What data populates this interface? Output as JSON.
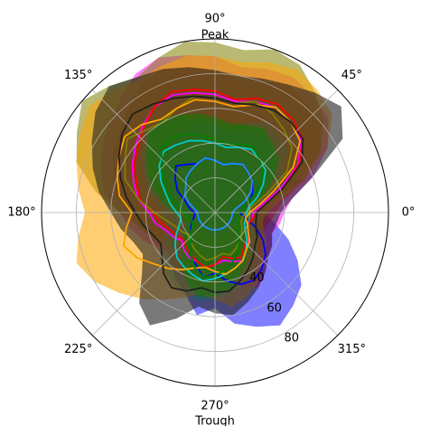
{
  "chart_data": {
    "type": "polar-area",
    "title": "",
    "angle_tick_labels": [
      "0°",
      "45°",
      "90°",
      "135°",
      "180°",
      "225°",
      "270°",
      "315°"
    ],
    "angle_ticks_deg": [
      0,
      45,
      90,
      135,
      180,
      225,
      270,
      315
    ],
    "angle_annotations": [
      {
        "angle_deg": 90,
        "text": "Peak"
      },
      {
        "angle_deg": 270,
        "text": "Trough"
      }
    ],
    "radial_ticks": [
      20,
      40,
      60,
      80
    ],
    "radial_tick_labels": [
      "",
      "40",
      "60",
      "80"
    ],
    "radial_label_angle_deg": 300,
    "rlim": [
      0,
      100
    ],
    "grid": true,
    "angles_deg": [
      0,
      10,
      20,
      30,
      40,
      50,
      60,
      70,
      80,
      90,
      100,
      110,
      120,
      130,
      140,
      150,
      160,
      170,
      180,
      190,
      200,
      210,
      220,
      230,
      240,
      250,
      260,
      270,
      280,
      290,
      300,
      310,
      320,
      330,
      340,
      350
    ],
    "series": [
      {
        "color": "#0000ff",
        "fill_alpha": 0.5,
        "upper": [
          28,
          30,
          55,
          40,
          45,
          50,
          55,
          48,
          42,
          45,
          50,
          48,
          50,
          55,
          45,
          40,
          30,
          25,
          20,
          20,
          25,
          30,
          35,
          40,
          45,
          50,
          60,
          55,
          65,
          70,
          75,
          70,
          65,
          55,
          45,
          35
        ],
        "line": [
          14,
          16,
          22,
          25,
          28,
          30,
          32,
          30,
          28,
          30,
          32,
          30,
          32,
          35,
          30,
          25,
          18,
          15,
          12,
          12,
          14,
          16,
          18,
          22,
          28,
          32,
          38,
          35,
          40,
          44,
          45,
          42,
          38,
          32,
          25,
          18
        ]
      },
      {
        "color": "#ff00ff",
        "fill_alpha": 0.5,
        "upper": [
          40,
          45,
          60,
          75,
          85,
          88,
          90,
          88,
          85,
          90,
          92,
          95,
          92,
          85,
          80,
          75,
          70,
          65,
          55,
          50,
          45,
          40,
          38,
          40,
          42,
          45,
          50,
          48,
          40,
          45,
          50,
          45,
          40,
          38,
          35,
          38
        ],
        "line": [
          22,
          28,
          40,
          55,
          65,
          68,
          70,
          68,
          65,
          68,
          70,
          72,
          70,
          65,
          60,
          55,
          50,
          45,
          38,
          35,
          30,
          28,
          25,
          28,
          30,
          30,
          32,
          30,
          28,
          30,
          32,
          28,
          25,
          22,
          20,
          22
        ]
      },
      {
        "color": "#ff0000",
        "fill_alpha": 0.45,
        "upper": [
          35,
          40,
          55,
          70,
          80,
          82,
          85,
          80,
          78,
          82,
          85,
          88,
          85,
          78,
          72,
          68,
          62,
          58,
          50,
          45,
          40,
          38,
          35,
          38,
          40,
          42,
          45,
          42,
          38,
          40,
          42,
          38,
          35,
          32,
          30,
          32
        ],
        "line": [
          24,
          30,
          42,
          56,
          66,
          70,
          72,
          70,
          66,
          70,
          72,
          74,
          70,
          64,
          58,
          54,
          48,
          44,
          36,
          32,
          28,
          26,
          24,
          26,
          28,
          30,
          32,
          30,
          26,
          28,
          30,
          26,
          24,
          22,
          20,
          22
        ]
      },
      {
        "color": "#808000",
        "fill_alpha": 0.55,
        "upper": [
          30,
          35,
          50,
          70,
          82,
          90,
          98,
          100,
          95,
          98,
          100,
          95,
          90,
          95,
          100,
          92,
          85,
          70,
          55,
          45,
          40,
          35,
          32,
          35,
          38,
          40,
          42,
          40,
          38,
          40,
          38,
          35,
          32,
          30,
          28,
          28
        ],
        "line": [
          18,
          22,
          32,
          48,
          58,
          62,
          66,
          68,
          64,
          66,
          68,
          64,
          60,
          62,
          66,
          60,
          55,
          45,
          35,
          28,
          24,
          22,
          20,
          22,
          24,
          26,
          28,
          26,
          24,
          26,
          24,
          22,
          20,
          18,
          16,
          16
        ]
      },
      {
        "color": "#00cccc",
        "fill_alpha": 0.5,
        "upper": [
          22,
          25,
          35,
          45,
          55,
          58,
          60,
          55,
          50,
          52,
          55,
          58,
          60,
          62,
          55,
          48,
          42,
          35,
          30,
          28,
          30,
          35,
          40,
          45,
          48,
          50,
          52,
          50,
          48,
          45,
          42,
          38,
          32,
          28,
          25,
          22
        ],
        "line": [
          18,
          20,
          26,
          32,
          38,
          40,
          42,
          40,
          38,
          40,
          42,
          44,
          45,
          46,
          42,
          36,
          30,
          26,
          22,
          20,
          22,
          26,
          30,
          34,
          36,
          38,
          40,
          38,
          36,
          34,
          32,
          28,
          24,
          20,
          18,
          18
        ]
      },
      {
        "color": "#1e90ff",
        "fill_alpha": 0.6,
        "upper": [
          14,
          18,
          28,
          38,
          45,
          50,
          52,
          50,
          48,
          50,
          52,
          50,
          48,
          45,
          40,
          35,
          28,
          22,
          18,
          16,
          14,
          14,
          14,
          14,
          14,
          14,
          14,
          14,
          14,
          14,
          14,
          14,
          14,
          14,
          14,
          14
        ],
        "line": [
          10,
          12,
          18,
          24,
          28,
          30,
          32,
          30,
          28,
          30,
          32,
          30,
          28,
          26,
          22,
          20,
          16,
          12,
          10,
          10,
          10,
          10,
          10,
          10,
          10,
          10,
          10,
          10,
          10,
          10,
          10,
          10,
          10,
          10,
          10,
          10
        ]
      },
      {
        "color": "#ffa500",
        "fill_alpha": 0.55,
        "upper": [
          30,
          38,
          55,
          75,
          88,
          92,
          95,
          92,
          88,
          90,
          92,
          90,
          88,
          92,
          95,
          90,
          85,
          80,
          75,
          80,
          85,
          80,
          72,
          65,
          58,
          52,
          48,
          50,
          55,
          52,
          48,
          42,
          38,
          34,
          30,
          28
        ],
        "line": [
          20,
          26,
          36,
          52,
          64,
          68,
          70,
          66,
          62,
          64,
          66,
          64,
          62,
          66,
          68,
          64,
          60,
          56,
          48,
          52,
          56,
          52,
          46,
          42,
          38,
          34,
          32,
          34,
          36,
          34,
          32,
          28,
          26,
          22,
          20,
          18
        ]
      },
      {
        "color": "#202020",
        "fill_alpha": 0.6,
        "upper": [
          38,
          45,
          60,
          85,
          95,
          90,
          85,
          82,
          80,
          82,
          85,
          88,
          90,
          95,
          90,
          82,
          75,
          68,
          60,
          55,
          50,
          48,
          55,
          68,
          75,
          65,
          55,
          58,
          60,
          55,
          50,
          45,
          40,
          38,
          35,
          36
        ],
        "line": [
          24,
          30,
          42,
          58,
          66,
          68,
          68,
          66,
          64,
          66,
          68,
          70,
          72,
          74,
          70,
          64,
          58,
          52,
          46,
          42,
          38,
          36,
          40,
          46,
          50,
          48,
          44,
          46,
          46,
          42,
          38,
          34,
          30,
          28,
          25,
          24
        ]
      },
      {
        "color": "#008000",
        "fill_alpha": 0.5,
        "upper": [
          20,
          22,
          30,
          40,
          48,
          52,
          56,
          54,
          52,
          55,
          58,
          60,
          62,
          60,
          52,
          45,
          38,
          30,
          24,
          20,
          18,
          20,
          24,
          30,
          38,
          45,
          50,
          48,
          45,
          40,
          35,
          30,
          26,
          22,
          20,
          20
        ],
        "line": [
          14,
          16,
          22,
          30,
          36,
          40,
          44,
          42,
          40,
          42,
          45,
          48,
          50,
          48,
          40,
          34,
          28,
          22,
          18,
          15,
          14,
          15,
          18,
          22,
          28,
          34,
          38,
          36,
          34,
          30,
          26,
          22,
          18,
          16,
          14,
          14
        ]
      }
    ]
  }
}
